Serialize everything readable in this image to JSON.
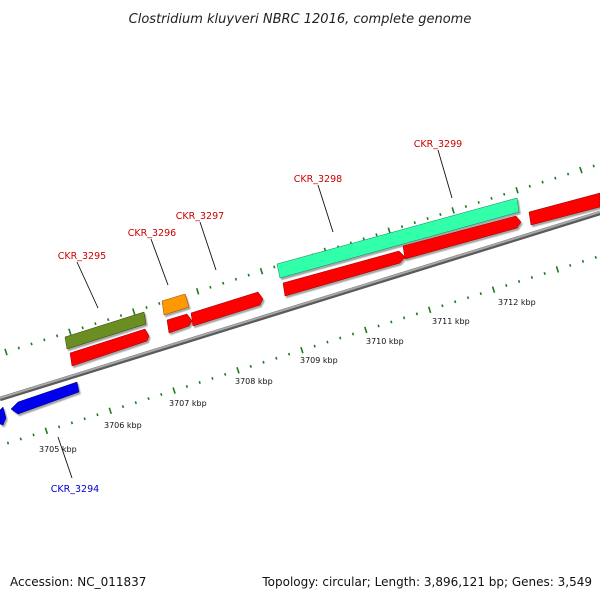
{
  "title": "Clostridium kluyveri NBRC 12016, complete genome",
  "accession": "Accession: NC_011837",
  "stats": "Topology: circular; Length: 3,896,121 bp; Genes: 3,549",
  "colors": {
    "backbone": "#8c8c8c",
    "tick": "#1f7a1f",
    "forward_label": "#cc0000",
    "reverse_label": "#0000cc",
    "red": "#ff0000",
    "green": "#6b8e23",
    "orange": "#ff9900",
    "teal": "#33ffaa",
    "blue": "#0000ee"
  },
  "kbp_labels": [
    "3705 kbp",
    "3706 kbp",
    "3707 kbp",
    "3708 kbp",
    "3709 kbp",
    "3710 kbp",
    "3711 kbp",
    "3712 kbp"
  ],
  "gene_labels": [
    {
      "name": "CKR_3294",
      "strand": "reverse"
    },
    {
      "name": "CKR_3295",
      "strand": "forward"
    },
    {
      "name": "CKR_3296",
      "strand": "forward"
    },
    {
      "name": "CKR_3297",
      "strand": "forward"
    },
    {
      "name": "CKR_3298",
      "strand": "forward"
    },
    {
      "name": "CKR_3299",
      "strand": "forward"
    }
  ],
  "features": [
    {
      "id": "left-blue-edge",
      "strand": "reverse",
      "color": "blue"
    },
    {
      "id": "ckr-3294-blue",
      "strand": "reverse",
      "color": "blue"
    },
    {
      "id": "ckr-3295-green",
      "strand": "forward",
      "color": "green"
    },
    {
      "id": "ckr-3295-red",
      "strand": "forward",
      "color": "red"
    },
    {
      "id": "ckr-3296-orange",
      "strand": "forward",
      "color": "orange"
    },
    {
      "id": "ckr-3296-red",
      "strand": "forward",
      "color": "red"
    },
    {
      "id": "ckr-3297-red",
      "strand": "forward",
      "color": "red"
    },
    {
      "id": "ckr-3298-teal",
      "strand": "forward",
      "color": "teal"
    },
    {
      "id": "ckr-3298-red",
      "strand": "forward",
      "color": "red"
    },
    {
      "id": "ckr-3299-red",
      "strand": "forward",
      "color": "red"
    },
    {
      "id": "right-red-edge",
      "strand": "forward",
      "color": "red"
    }
  ]
}
